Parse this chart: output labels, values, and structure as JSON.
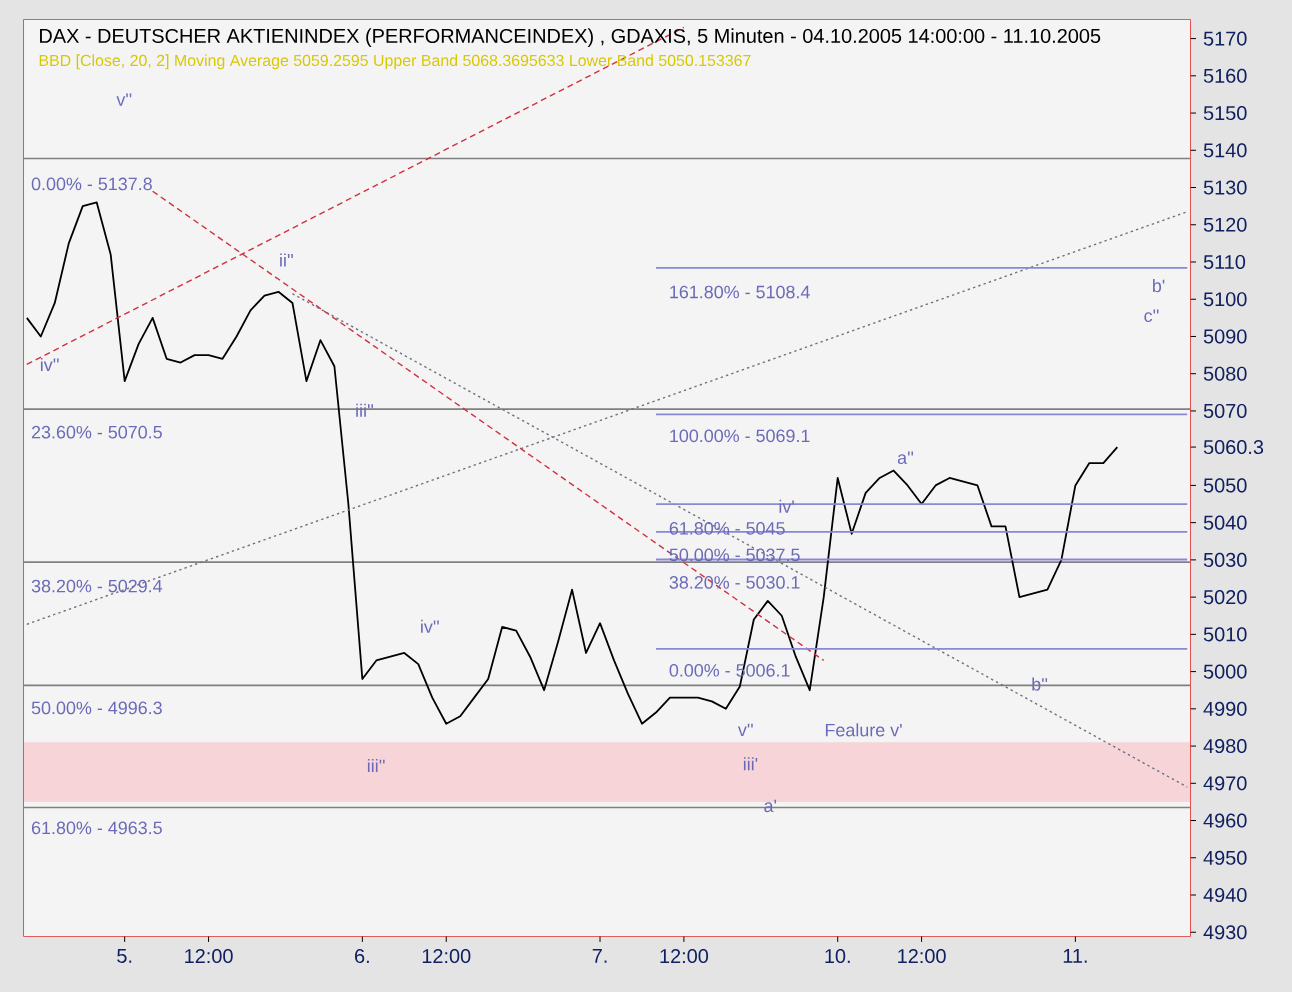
{
  "chart_data": {
    "type": "line",
    "title": "DAX - DEUTSCHER AKTIENINDEX (PERFORMANCEINDEX) , GDAXIS, 5 Minuten - 04.10.2005 14:00:00 - 11.10.2005",
    "subtitle": "BBD [Close, 20, 2] Moving Average 5059.2595 Upper Band 5068.3695633 Lower Band 5050.153367",
    "categories": [
      null,
      null,
      null,
      null,
      null,
      null,
      null,
      "5.",
      null,
      null,
      null,
      null,
      null,
      "12:00",
      null,
      null,
      null,
      null,
      null,
      null,
      null,
      null,
      null,
      null,
      "6.",
      null,
      null,
      null,
      null,
      null,
      "12:00",
      null,
      null,
      null,
      null,
      null,
      null,
      null,
      null,
      null,
      null,
      "7.",
      null,
      null,
      null,
      null,
      null,
      "12:00",
      null,
      null,
      null,
      null,
      null,
      null,
      null,
      null,
      null,
      null,
      "10.",
      null,
      null,
      null,
      null,
      null,
      "12:00",
      null,
      null,
      null,
      null,
      null,
      null,
      null,
      null,
      null,
      null,
      "11.",
      null,
      null,
      null,
      null,
      null,
      null,
      null,
      null
    ],
    "ylim": [
      4929,
      5175
    ],
    "yticks": [
      4930,
      4940,
      4950,
      4960,
      4970,
      4980,
      4990,
      5000,
      5010,
      5020,
      5030,
      5040,
      5050,
      {
        "value": 5060.3,
        "label": "5060.3"
      },
      5070,
      5080,
      5090,
      5100,
      5110,
      5120,
      5130,
      5140,
      5150,
      5160,
      5170
    ],
    "bands": [
      {
        "axis": "y",
        "from": 4965,
        "to": 4981,
        "color": "#f6d4d8"
      }
    ],
    "ref_lines": [
      {
        "axis": "y",
        "value": 5137.8,
        "color": "#808080"
      },
      {
        "axis": "y",
        "value": 5070.5,
        "color": "#808080"
      },
      {
        "axis": "y",
        "value": 5029.4,
        "color": "#808080"
      },
      {
        "axis": "y",
        "value": 4996.3,
        "color": "#808080"
      },
      {
        "axis": "y",
        "value": 4963.5,
        "color": "#808080"
      }
    ],
    "series": [
      {
        "color": "#000000",
        "line_style": "solid",
        "values": [
          5095,
          5090,
          5099,
          5115,
          5125,
          5126,
          5112,
          5078,
          5088,
          5095,
          5084,
          5083,
          5085,
          5085,
          5084,
          5090,
          5097,
          5101,
          5102,
          5099,
          5078,
          5089,
          5082,
          5045,
          4998,
          5003,
          5004,
          5005,
          5002,
          4993,
          4986,
          4988,
          4993,
          4998,
          5012,
          5011,
          5004,
          4995,
          5008,
          5022,
          5005,
          5013,
          5003,
          4994,
          4986,
          4989,
          4993,
          4993,
          4993,
          4992,
          4990,
          4996,
          5014,
          5019,
          5015,
          5004,
          4995,
          5020,
          5052,
          5037,
          5048,
          5052,
          5054,
          5050,
          5045,
          5050,
          5052,
          5051,
          5050,
          5039,
          5039,
          5020,
          5021,
          5022,
          5030,
          5050,
          5056,
          5056,
          5060.3,
          null,
          null,
          null,
          null,
          null
        ]
      },
      {
        "color": "#d03040",
        "line_style": "dashed",
        "values": [
          5082.5,
          null,
          null,
          null,
          null,
          null,
          null,
          null,
          null,
          null,
          null,
          null,
          null,
          null,
          null,
          null,
          null,
          null,
          null,
          null,
          null,
          null,
          null,
          null,
          null,
          null,
          null,
          null,
          null,
          null,
          null,
          null,
          null,
          null,
          null,
          null,
          null,
          null,
          null,
          null,
          null,
          null,
          null,
          null,
          null,
          null,
          null,
          5173,
          null,
          null,
          null,
          null,
          null,
          null,
          null,
          null,
          null,
          null,
          null,
          null,
          null,
          null,
          null,
          null,
          null,
          null,
          null,
          null,
          null,
          null,
          null,
          null,
          null,
          null,
          null,
          null,
          null,
          null,
          null,
          null,
          null,
          null,
          null,
          null
        ]
      },
      {
        "color": "#d03040",
        "line_style": "dashed",
        "values": [
          null,
          null,
          null,
          null,
          null,
          null,
          null,
          null,
          null,
          5129,
          null,
          null,
          null,
          null,
          null,
          null,
          null,
          null,
          null,
          null,
          null,
          null,
          null,
          null,
          null,
          null,
          null,
          null,
          null,
          null,
          null,
          null,
          null,
          null,
          null,
          null,
          null,
          null,
          null,
          null,
          null,
          null,
          null,
          null,
          null,
          null,
          null,
          null,
          null,
          null,
          null,
          null,
          null,
          null,
          null,
          null,
          null,
          5003,
          null,
          null,
          null,
          null,
          null,
          null,
          null,
          null,
          null,
          null,
          null,
          null,
          null,
          null,
          null,
          null,
          null,
          null,
          null,
          null,
          null,
          null,
          null,
          null,
          null,
          null
        ]
      },
      {
        "color": "#707080",
        "line_style": "dotted",
        "values": [
          null,
          null,
          null,
          null,
          null,
          null,
          null,
          null,
          null,
          null,
          null,
          null,
          null,
          null,
          null,
          null,
          null,
          null,
          null,
          5101.5,
          null,
          null,
          null,
          null,
          null,
          null,
          null,
          null,
          null,
          null,
          null,
          null,
          null,
          null,
          null,
          null,
          null,
          null,
          null,
          null,
          null,
          null,
          null,
          null,
          null,
          null,
          null,
          null,
          null,
          null,
          null,
          null,
          null,
          null,
          null,
          null,
          null,
          null,
          null,
          null,
          null,
          null,
          null,
          null,
          null,
          null,
          null,
          null,
          null,
          null,
          null,
          null,
          null,
          null,
          null,
          null,
          null,
          null,
          null,
          null,
          null,
          null,
          null,
          4969
        ]
      },
      {
        "color": "#707080",
        "line_style": "dotted",
        "values": [
          5012.7,
          null,
          null,
          null,
          null,
          null,
          null,
          null,
          null,
          null,
          null,
          null,
          null,
          null,
          null,
          null,
          null,
          null,
          null,
          null,
          null,
          null,
          null,
          null,
          null,
          null,
          null,
          null,
          null,
          null,
          null,
          null,
          null,
          null,
          null,
          null,
          null,
          null,
          null,
          null,
          null,
          null,
          null,
          null,
          null,
          null,
          null,
          null,
          null,
          null,
          null,
          null,
          null,
          null,
          null,
          null,
          null,
          null,
          null,
          null,
          null,
          null,
          null,
          null,
          null,
          null,
          null,
          null,
          null,
          null,
          null,
          null,
          null,
          null,
          null,
          null,
          null,
          null,
          null,
          null,
          null,
          null,
          null,
          5123.5
        ]
      },
      {
        "color": "#8888d8",
        "line_style": "solid",
        "values": [
          null,
          null,
          null,
          null,
          null,
          null,
          null,
          null,
          null,
          null,
          null,
          null,
          null,
          null,
          null,
          null,
          null,
          null,
          null,
          null,
          null,
          null,
          null,
          null,
          null,
          null,
          null,
          null,
          null,
          null,
          null,
          null,
          null,
          null,
          null,
          null,
          null,
          null,
          null,
          null,
          null,
          null,
          null,
          null,
          null,
          5108.4,
          null,
          null,
          null,
          null,
          null,
          null,
          null,
          null,
          null,
          null,
          null,
          null,
          null,
          null,
          null,
          null,
          null,
          null,
          null,
          null,
          null,
          null,
          null,
          null,
          null,
          null,
          null,
          null,
          null,
          null,
          null,
          null,
          null,
          null,
          null,
          null,
          null,
          5108.4
        ]
      },
      {
        "color": "#8888d8",
        "line_style": "solid",
        "values": [
          null,
          null,
          null,
          null,
          null,
          null,
          null,
          null,
          null,
          null,
          null,
          null,
          null,
          null,
          null,
          null,
          null,
          null,
          null,
          null,
          null,
          null,
          null,
          null,
          null,
          null,
          null,
          null,
          null,
          null,
          null,
          null,
          null,
          null,
          null,
          null,
          null,
          null,
          null,
          null,
          null,
          null,
          null,
          null,
          null,
          5069.1,
          null,
          null,
          null,
          null,
          null,
          null,
          null,
          null,
          null,
          null,
          null,
          null,
          null,
          null,
          null,
          null,
          null,
          null,
          null,
          null,
          null,
          null,
          null,
          null,
          null,
          null,
          null,
          null,
          null,
          null,
          null,
          null,
          null,
          null,
          null,
          null,
          null,
          5069.1
        ]
      },
      {
        "color": "#8888d8",
        "line_style": "solid",
        "values": [
          null,
          null,
          null,
          null,
          null,
          null,
          null,
          null,
          null,
          null,
          null,
          null,
          null,
          null,
          null,
          null,
          null,
          null,
          null,
          null,
          null,
          null,
          null,
          null,
          null,
          null,
          null,
          null,
          null,
          null,
          null,
          null,
          null,
          null,
          null,
          null,
          null,
          null,
          null,
          null,
          null,
          null,
          null,
          null,
          null,
          5045,
          null,
          null,
          null,
          null,
          null,
          null,
          null,
          null,
          null,
          null,
          null,
          null,
          null,
          null,
          null,
          null,
          null,
          null,
          null,
          null,
          null,
          null,
          null,
          null,
          null,
          null,
          null,
          null,
          null,
          null,
          null,
          null,
          null,
          null,
          null,
          null,
          null,
          5045
        ]
      },
      {
        "color": "#8888d8",
        "line_style": "solid",
        "values": [
          null,
          null,
          null,
          null,
          null,
          null,
          null,
          null,
          null,
          null,
          null,
          null,
          null,
          null,
          null,
          null,
          null,
          null,
          null,
          null,
          null,
          null,
          null,
          null,
          null,
          null,
          null,
          null,
          null,
          null,
          null,
          null,
          null,
          null,
          null,
          null,
          null,
          null,
          null,
          null,
          null,
          null,
          null,
          null,
          null,
          5037.5,
          null,
          null,
          null,
          null,
          null,
          null,
          null,
          null,
          null,
          null,
          null,
          null,
          null,
          null,
          null,
          null,
          null,
          null,
          null,
          null,
          null,
          null,
          null,
          null,
          null,
          null,
          null,
          null,
          null,
          null,
          null,
          null,
          null,
          null,
          null,
          null,
          null,
          5037.5
        ]
      },
      {
        "color": "#8888d8",
        "line_style": "solid",
        "values": [
          null,
          null,
          null,
          null,
          null,
          null,
          null,
          null,
          null,
          null,
          null,
          null,
          null,
          null,
          null,
          null,
          null,
          null,
          null,
          null,
          null,
          null,
          null,
          null,
          null,
          null,
          null,
          null,
          null,
          null,
          null,
          null,
          null,
          null,
          null,
          null,
          null,
          null,
          null,
          null,
          null,
          null,
          null,
          null,
          null,
          5030.1,
          null,
          null,
          null,
          null,
          null,
          null,
          null,
          null,
          null,
          null,
          null,
          null,
          null,
          null,
          null,
          null,
          null,
          null,
          null,
          null,
          null,
          null,
          null,
          null,
          null,
          null,
          null,
          null,
          null,
          null,
          null,
          null,
          null,
          null,
          null,
          null,
          null,
          5030.1
        ]
      },
      {
        "color": "#8888d8",
        "line_style": "solid",
        "values": [
          null,
          null,
          null,
          null,
          null,
          null,
          null,
          null,
          null,
          null,
          null,
          null,
          null,
          null,
          null,
          null,
          null,
          null,
          null,
          null,
          null,
          null,
          null,
          null,
          null,
          null,
          null,
          null,
          null,
          null,
          null,
          null,
          null,
          null,
          null,
          null,
          null,
          null,
          null,
          null,
          null,
          null,
          null,
          null,
          null,
          5006.1,
          null,
          null,
          null,
          null,
          null,
          null,
          null,
          null,
          null,
          null,
          null,
          null,
          null,
          null,
          null,
          null,
          null,
          null,
          null,
          null,
          null,
          null,
          null,
          null,
          null,
          null,
          null,
          null,
          null,
          null,
          null,
          null,
          null,
          null,
          null,
          null,
          null,
          5006.1
        ]
      }
    ],
    "annotations": [
      "0.00% - 5137.8",
      "23.60% - 5070.5",
      "38.20% - 5029.4",
      "50.00% - 4996.3",
      "61.80% - 4963.5",
      "161.80% - 5108.4",
      "100.00% - 5069.1",
      "61.80% - 5045",
      "50.00% - 5037.5",
      "38.20% - 5030.1",
      "0.00% - 5006.1",
      "v''",
      "iv''",
      "ii''",
      "iii''",
      "iv''",
      "iii''",
      "v''",
      "iii'",
      "a'",
      "Fealure v'",
      "iv'",
      "a''",
      "b''",
      "b'",
      "c''"
    ]
  }
}
